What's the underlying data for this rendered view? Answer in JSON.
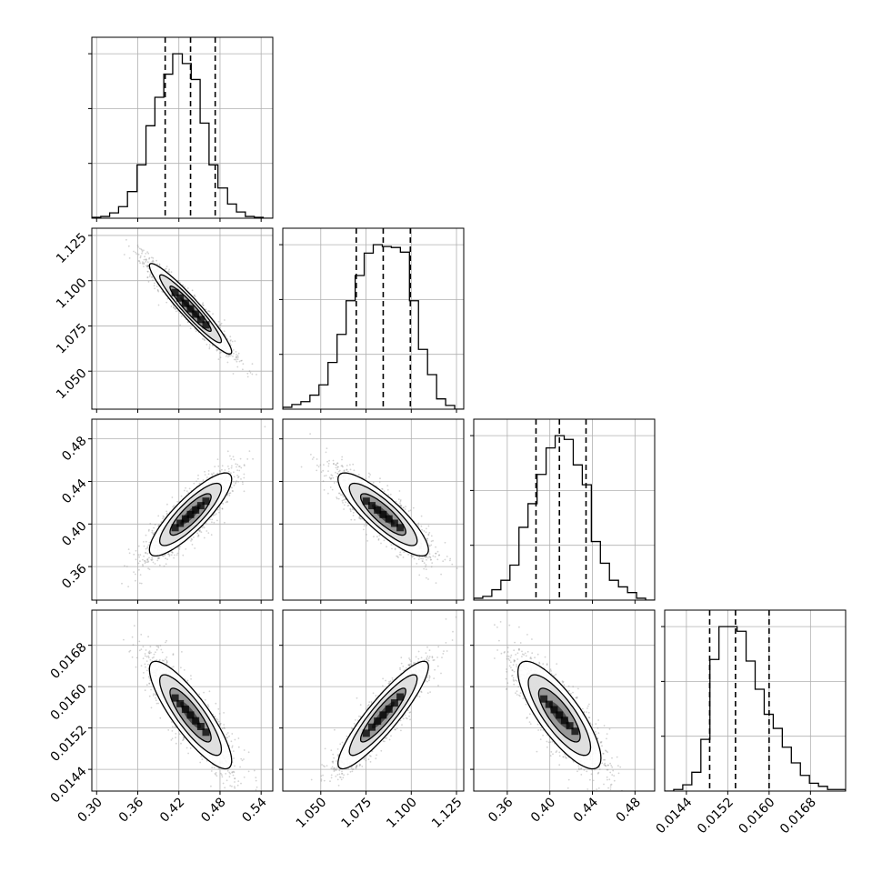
{
  "chart_data": {
    "type": "corner",
    "title": "",
    "parameter_labels": [
      "",
      "",
      "",
      ""
    ],
    "grid": true,
    "colors": {
      "line": "#000000",
      "grid": "#b0b0b0",
      "points": "#808080",
      "background": "#ffffff"
    },
    "axes": {
      "ranges": [
        [
          0.293,
          0.557
        ],
        [
          1.029,
          1.129
        ],
        [
          0.3285,
          0.4985
        ],
        [
          0.01398,
          0.01748
        ]
      ],
      "ticks": [
        [
          0.3,
          0.36,
          0.42,
          0.48,
          0.54
        ],
        [
          1.05,
          1.075,
          1.1,
          1.125
        ],
        [
          0.36,
          0.4,
          0.44,
          0.48
        ],
        [
          0.0144,
          0.0152,
          0.016,
          0.0168
        ]
      ],
      "tick_labels": [
        [
          "0.30",
          "0.36",
          "0.42",
          "0.48",
          "0.54"
        ],
        [
          "1.050",
          "1.075",
          "1.100",
          "1.125"
        ],
        [
          "0.36",
          "0.40",
          "0.44",
          "0.48"
        ],
        [
          "0.0144",
          "0.0152",
          "0.0160",
          "0.0168"
        ]
      ]
    },
    "quantiles": [
      [
        0.4,
        0.437,
        0.473
      ],
      [
        1.0696,
        1.0845,
        1.0995
      ],
      [
        0.387,
        0.409,
        0.434
      ],
      [
        0.01485,
        0.01535,
        0.016
      ]
    ],
    "histograms": [
      {
        "bin_edges": [
          0.293,
          0.306,
          0.319,
          0.332,
          0.345,
          0.359,
          0.372,
          0.385,
          0.398,
          0.411,
          0.425,
          0.438,
          0.451,
          0.464,
          0.477,
          0.491,
          0.504,
          0.517,
          0.53,
          0.543,
          0.557
        ],
        "counts": [
          1,
          2,
          6,
          13,
          30,
          60,
          104,
          136,
          162,
          185,
          174,
          156,
          107,
          60,
          34,
          16,
          7,
          2,
          1,
          0
        ]
      },
      {
        "bin_edges": [
          1.029,
          1.034,
          1.039,
          1.044,
          1.049,
          1.054,
          1.059,
          1.064,
          1.069,
          1.074,
          1.079,
          1.084,
          1.089,
          1.094,
          1.099,
          1.104,
          1.109,
          1.114,
          1.119,
          1.124,
          1.129
        ],
        "counts": [
          2,
          5,
          8,
          15,
          26,
          50,
          80,
          116,
          143,
          167,
          176,
          174,
          173,
          168,
          116,
          64,
          37,
          11,
          4,
          0
        ]
      },
      {
        "bin_edges": [
          0.3285,
          0.337,
          0.3455,
          0.354,
          0.3625,
          0.371,
          0.3795,
          0.388,
          0.3965,
          0.405,
          0.4135,
          0.422,
          0.4305,
          0.439,
          0.4475,
          0.456,
          0.4645,
          0.473,
          0.4815,
          0.49,
          0.4985
        ],
        "counts": [
          2,
          4,
          11,
          21,
          37,
          77,
          102,
          133,
          161,
          174,
          170,
          143,
          122,
          62,
          39,
          21,
          14,
          8,
          2,
          0
        ]
      },
      {
        "bin_edges": [
          0.01398,
          0.014155,
          0.01433,
          0.014505,
          0.01468,
          0.014855,
          0.01503,
          0.015205,
          0.01538,
          0.015555,
          0.01573,
          0.015905,
          0.01608,
          0.016255,
          0.01643,
          0.016605,
          0.01678,
          0.016955,
          0.01713,
          0.017305,
          0.01748
        ],
        "counts": [
          0,
          1,
          4,
          12,
          33,
          84,
          105,
          105,
          102,
          83,
          65,
          49,
          40,
          28,
          18,
          10,
          5,
          3,
          1,
          1
        ]
      }
    ],
    "contour_levels": [
      "0.5",
      "1.0",
      "1.5",
      "2.0"
    ],
    "pairs": [
      {
        "row": 1,
        "col": 0,
        "mean": [
          0.437,
          1.0845
        ],
        "sd": [
          0.03,
          0.0125
        ],
        "corr": -0.95
      },
      {
        "row": 2,
        "col": 0,
        "mean": [
          0.437,
          0.409
        ],
        "sd": [
          0.03,
          0.0195
        ],
        "corr": 0.85
      },
      {
        "row": 2,
        "col": 1,
        "mean": [
          1.0845,
          0.409
        ],
        "sd": [
          0.0125,
          0.0195
        ],
        "corr": -0.85
      },
      {
        "row": 3,
        "col": 0,
        "mean": [
          0.437,
          0.01545
        ],
        "sd": [
          0.03,
          0.00052
        ],
        "corr": -0.85
      },
      {
        "row": 3,
        "col": 1,
        "mean": [
          1.0845,
          0.01545
        ],
        "sd": [
          0.0125,
          0.00052
        ],
        "corr": 0.9
      },
      {
        "row": 3,
        "col": 2,
        "mean": [
          0.409,
          0.01545
        ],
        "sd": [
          0.0195,
          0.00052
        ],
        "corr": -0.8
      }
    ]
  }
}
